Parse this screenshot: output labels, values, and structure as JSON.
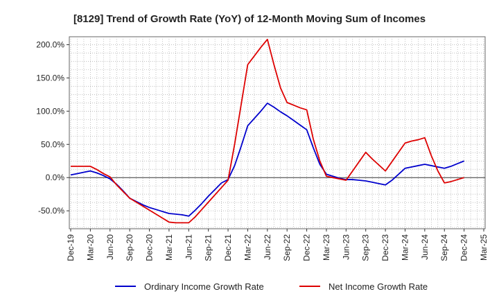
{
  "chart_data": {
    "type": "line",
    "title": "[8129]  Trend of Growth Rate (YoY) of 12-Month Moving Sum of Incomes",
    "xlabel": "",
    "ylabel": "",
    "x_ticks": [
      "Dec-19",
      "Mar-20",
      "Jun-20",
      "Sep-20",
      "Dec-20",
      "Mar-21",
      "Jun-21",
      "Sep-21",
      "Dec-21",
      "Mar-22",
      "Jun-22",
      "Sep-22",
      "Dec-22",
      "Mar-23",
      "Jun-23",
      "Sep-23",
      "Dec-23",
      "Mar-24",
      "Jun-24",
      "Sep-24",
      "Dec-24",
      "Mar-25"
    ],
    "y_ticks": [
      "-50.0%",
      "0.0%",
      "50.0%",
      "100.0%",
      "150.0%",
      "200.0%"
    ],
    "ylim": [
      -77,
      212
    ],
    "grid": true,
    "legend_position": "bottom",
    "x": [
      "Dec-19",
      "Jan-20",
      "Feb-20",
      "Mar-20",
      "Apr-20",
      "May-20",
      "Jun-20",
      "Jul-20",
      "Aug-20",
      "Sep-20",
      "Oct-20",
      "Nov-20",
      "Dec-20",
      "Jan-21",
      "Feb-21",
      "Mar-21",
      "Apr-21",
      "May-21",
      "Jun-21",
      "Jul-21",
      "Aug-21",
      "Sep-21",
      "Oct-21",
      "Nov-21",
      "Dec-21",
      "Jan-22",
      "Feb-22",
      "Mar-22",
      "Apr-22",
      "May-22",
      "Jun-22",
      "Jul-22",
      "Aug-22",
      "Sep-22",
      "Oct-22",
      "Nov-22",
      "Dec-22",
      "Jan-23",
      "Feb-23",
      "Mar-23",
      "Apr-23",
      "May-23",
      "Jun-23",
      "Jul-23",
      "Aug-23",
      "Sep-23",
      "Oct-23",
      "Nov-23",
      "Dec-23",
      "Jan-24",
      "Feb-24",
      "Mar-24",
      "Apr-24",
      "May-24",
      "Jun-24",
      "Jul-24",
      "Aug-24",
      "Sep-24",
      "Oct-24",
      "Nov-24",
      "Dec-24"
    ],
    "series": [
      {
        "name": "Ordinary Income Growth Rate",
        "color": "#0000cc",
        "values": [
          4,
          6,
          8,
          10,
          7,
          3,
          -2,
          -10,
          -20,
          -31,
          -36,
          -41,
          -45,
          -48,
          -51,
          -54,
          -55,
          -56,
          -58,
          -49,
          -39,
          -28,
          -18,
          -8,
          -3,
          18,
          47,
          78,
          89,
          100,
          112,
          106,
          99,
          93,
          86,
          79,
          72,
          45,
          20,
          5,
          2,
          -1,
          -3,
          -3,
          -4,
          -5,
          -7,
          -9,
          -11,
          -4,
          5,
          14,
          16,
          18,
          20,
          18,
          16,
          14,
          17,
          21,
          25
        ]
      },
      {
        "name": "Net Income Growth Rate",
        "color": "#dd0000",
        "values": [
          17,
          17,
          17,
          17,
          12,
          6,
          1,
          -11,
          -21,
          -31,
          -37,
          -43,
          -49,
          -55,
          -61,
          -67,
          -68,
          -68,
          -68,
          -59,
          -48,
          -37,
          -26,
          -15,
          -4,
          50,
          110,
          170,
          183,
          196,
          208,
          170,
          135,
          113,
          109,
          105,
          102,
          58,
          25,
          2,
          0,
          -2,
          -4,
          10,
          24,
          38,
          28,
          19,
          10,
          24,
          38,
          52,
          55,
          57,
          60,
          33,
          10,
          -8,
          -6,
          -3,
          0
        ]
      }
    ]
  }
}
